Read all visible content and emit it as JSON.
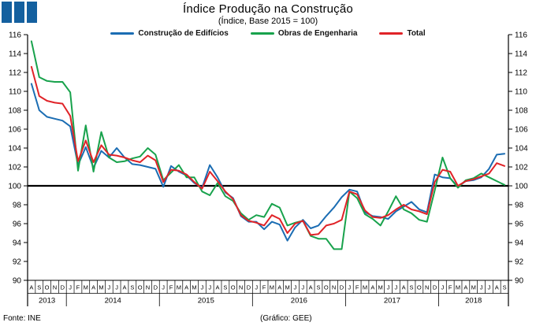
{
  "logo": {
    "color": "#14609f"
  },
  "header": {
    "title": "Índice Produção na Construção",
    "subtitle": "(Índice, Base 2015 = 100)"
  },
  "footer": {
    "source": "Fonte: INE",
    "credit": "(Gráfico: GEE)"
  },
  "chart_data": {
    "type": "line",
    "title": "Índice Produção na Construção",
    "subtitle": "(Índice, Base 2015 = 100)",
    "ylabel": "",
    "xlabel": "",
    "ylim": [
      90,
      116
    ],
    "grid": false,
    "legend_position": "top",
    "y_axis": {
      "min": 90,
      "max": 116,
      "step": 2,
      "ref_line": 100
    },
    "x_axis": {
      "years": [
        {
          "label": "2013",
          "months": [
            "A",
            "S",
            "O",
            "N",
            "D"
          ]
        },
        {
          "label": "2014",
          "months": [
            "J",
            "F",
            "M",
            "A",
            "M",
            "J",
            "J",
            "A",
            "S",
            "O",
            "N",
            "D"
          ]
        },
        {
          "label": "2015",
          "months": [
            "J",
            "F",
            "M",
            "A",
            "M",
            "J",
            "J",
            "A",
            "S",
            "O",
            "N",
            "D"
          ]
        },
        {
          "label": "2016",
          "months": [
            "J",
            "F",
            "M",
            "A",
            "M",
            "J",
            "J",
            "A",
            "S",
            "O",
            "N",
            "D"
          ]
        },
        {
          "label": "2017",
          "months": [
            "J",
            "F",
            "M",
            "A",
            "M",
            "J",
            "J",
            "A",
            "S",
            "O",
            "N",
            "D"
          ]
        },
        {
          "label": "2018",
          "months": [
            "J",
            "F",
            "M",
            "A",
            "M",
            "J",
            "J",
            "A",
            "S"
          ]
        }
      ]
    },
    "series": [
      {
        "name": "Construção de Edifícios",
        "color": "#1b6db3",
        "values": [
          110.8,
          108.0,
          107.3,
          107.1,
          106.9,
          106.3,
          102.2,
          104.1,
          101.9,
          103.7,
          103.0,
          104.0,
          103.0,
          102.3,
          102.2,
          102.0,
          101.8,
          99.9,
          102.1,
          101.5,
          101.1,
          100.3,
          99.8,
          102.2,
          100.9,
          99.3,
          98.7,
          96.8,
          96.2,
          96.2,
          95.4,
          96.2,
          95.9,
          94.2,
          95.6,
          96.4,
          95.5,
          95.8,
          96.8,
          97.7,
          98.8,
          99.6,
          99.4,
          97.2,
          96.8,
          96.7,
          96.5,
          97.3,
          97.8,
          98.3,
          97.5,
          97.2,
          101.2,
          100.9,
          100.8,
          99.9,
          100.5,
          100.6,
          100.9,
          101.8,
          103.3,
          103.4
        ]
      },
      {
        "name": "Obras de Engenharia",
        "color": "#18a24c",
        "values": [
          115.3,
          111.5,
          111.1,
          111.0,
          111.0,
          109.9,
          101.6,
          106.4,
          101.5,
          105.7,
          103.0,
          102.5,
          102.6,
          102.9,
          103.1,
          104.0,
          103.3,
          100.6,
          101.4,
          102.2,
          100.9,
          100.9,
          99.4,
          99.0,
          100.3,
          98.9,
          98.4,
          97.1,
          96.4,
          96.9,
          96.7,
          98.1,
          97.7,
          95.8,
          96.1,
          96.3,
          94.7,
          94.4,
          94.4,
          93.3,
          93.3,
          99.4,
          98.7,
          97.0,
          96.5,
          95.8,
          97.3,
          98.9,
          97.5,
          97.1,
          96.4,
          96.2,
          99.5,
          103.0,
          100.8,
          99.8,
          100.6,
          100.8,
          101.3,
          100.9,
          100.5,
          100.1
        ]
      },
      {
        "name": "Total",
        "color": "#e02328",
        "values": [
          112.6,
          109.5,
          109.0,
          108.8,
          108.7,
          107.4,
          102.6,
          104.8,
          102.5,
          104.3,
          103.3,
          103.2,
          103.0,
          102.7,
          102.5,
          103.2,
          102.7,
          100.4,
          101.7,
          101.6,
          101.2,
          100.4,
          99.7,
          101.5,
          100.5,
          99.4,
          98.6,
          96.9,
          96.3,
          96.1,
          95.8,
          96.9,
          96.5,
          95.0,
          96.0,
          96.3,
          94.8,
          94.9,
          95.8,
          96.0,
          96.4,
          99.4,
          99.1,
          97.4,
          96.7,
          96.6,
          96.9,
          97.5,
          98.0,
          97.5,
          97.3,
          97.0,
          100.4,
          101.7,
          101.5,
          100.0,
          100.5,
          100.7,
          101.0,
          101.3,
          102.4,
          102.1
        ]
      }
    ]
  }
}
